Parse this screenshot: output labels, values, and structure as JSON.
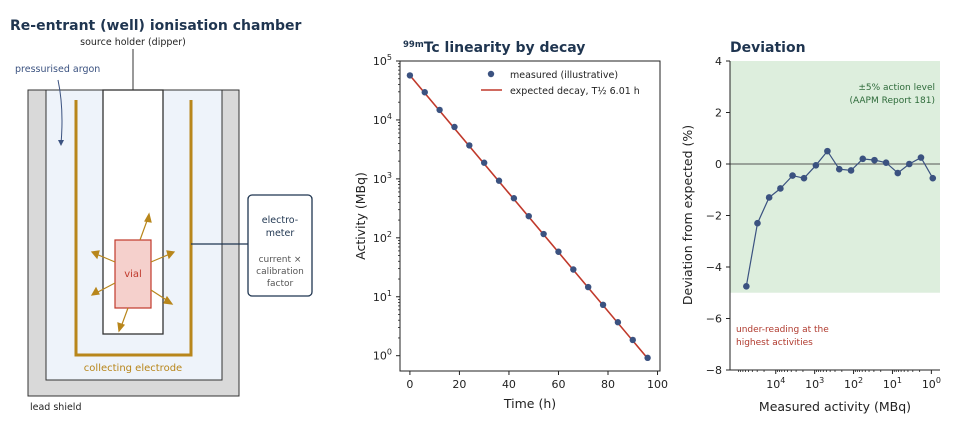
{
  "colors": {
    "title": "#1f3550",
    "electrode": "#b8861b",
    "vial_stroke": "#c0392b",
    "vial_fill": "#f5d0cc",
    "marker": "#3b5280",
    "expected_line": "#c0392b",
    "action_band": "#ddeedd",
    "annotation_green": "#2e6b3a",
    "annotation_red": "#b03a2e",
    "lead": "#d9d9d9",
    "chamber_inner": "#eef3fa"
  },
  "diagram": {
    "title": "Re-entrant (well) ionisation chamber",
    "source_holder": "source holder (dipper)",
    "gas": "pressurised argon",
    "meter_line1": "electro-",
    "meter_line2": "meter",
    "meter_note1": "current ×",
    "meter_note2": "calibration",
    "meter_note3": "factor",
    "vial": "vial",
    "electrode": "collecting electrode",
    "shield": "lead shield"
  },
  "chart_data": [
    {
      "type": "scatter",
      "title_sup": "99m",
      "title": "Tc linearity by decay",
      "xlabel": "Time (h)",
      "ylabel": "Activity (MBq)",
      "xlim": [
        -4,
        101
      ],
      "ylim": [
        0.55,
        100000
      ],
      "y_scale": "log",
      "x_ticks": [
        0,
        20,
        40,
        60,
        80,
        100
      ],
      "y_ticks": [
        {
          "value": 1,
          "label_base": "10",
          "label_exp": "0"
        },
        {
          "value": 10,
          "label_base": "10",
          "label_exp": "1"
        },
        {
          "value": 100,
          "label_base": "10",
          "label_exp": "2"
        },
        {
          "value": 1000,
          "label_base": "10",
          "label_exp": "3"
        },
        {
          "value": 10000,
          "label_base": "10",
          "label_exp": "4"
        },
        {
          "value": 100000,
          "label_base": "10",
          "label_exp": "5"
        }
      ],
      "legend": {
        "position": "top-right",
        "measured": "measured (illustrative)",
        "expected": "expected decay, T½ 6.01 h"
      },
      "series": [
        {
          "name": "measured (illustrative)",
          "x": [
            0,
            6,
            12,
            18,
            24,
            30,
            36,
            42,
            48,
            54,
            60,
            66,
            72,
            78,
            84,
            90,
            96
          ],
          "y": [
            57000,
            29500,
            14800,
            7600,
            3700,
            1880,
            930,
            470,
            233,
            116,
            58,
            29,
            14.6,
            7.3,
            3.7,
            1.85,
            0.92
          ]
        },
        {
          "name": "expected decay, T½ 6.01 h",
          "x": [
            0,
            96
          ],
          "y": [
            57000,
            0.9
          ]
        }
      ]
    },
    {
      "type": "line",
      "title": "Deviation",
      "xlabel": "Measured activity (MBq)",
      "ylabel": "Deviation from expected (%)",
      "x_scale": "log",
      "x_reversed": true,
      "xlim": [
        150000,
        0.6
      ],
      "ylim": [
        -8,
        4
      ],
      "x_ticks": [
        {
          "value": 10000,
          "label_base": "10",
          "label_exp": "4"
        },
        {
          "value": 1000,
          "label_base": "10",
          "label_exp": "3"
        },
        {
          "value": 100,
          "label_base": "10",
          "label_exp": "2"
        },
        {
          "value": 10,
          "label_base": "10",
          "label_exp": "1"
        },
        {
          "value": 1,
          "label_base": "10",
          "label_exp": "0"
        }
      ],
      "y_ticks": [
        4,
        2,
        0,
        -2,
        -4,
        -6,
        -8
      ],
      "band": [
        -5,
        5
      ],
      "band_label_1": "±5% action level",
      "band_label_2": "(AAPM Report 181)",
      "note_1": "under-reading at the",
      "note_2": "highest activities",
      "series": [
        {
          "x": [
            57000,
            29500,
            14800,
            7600,
            3700,
            1880,
            930,
            470,
            233,
            116,
            58,
            29,
            14.6,
            7.3,
            3.7,
            1.85,
            0.92
          ],
          "y": [
            -4.75,
            -2.3,
            -1.3,
            -0.95,
            -0.45,
            -0.55,
            -0.05,
            0.5,
            -0.2,
            -0.25,
            0.2,
            0.15,
            0.05,
            -0.35,
            0.0,
            0.25,
            -0.55
          ]
        }
      ]
    }
  ]
}
